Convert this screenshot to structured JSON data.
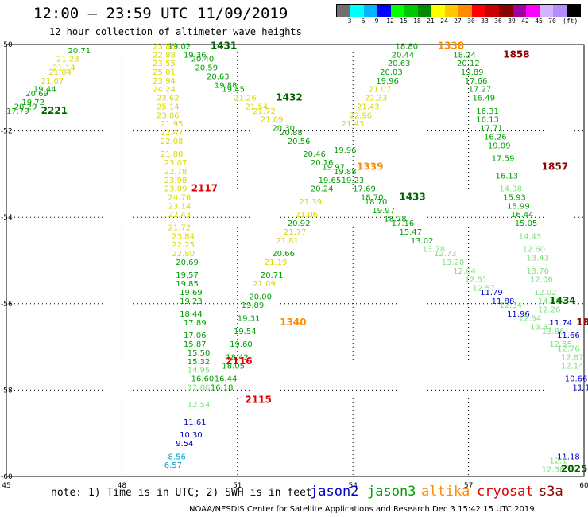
{
  "header": {
    "title": "12:00 – 23:59 UTC 11/09/2019",
    "subtitle": "12 hour collection of altimeter wave heights"
  },
  "legend": {
    "colors": [
      "#707070",
      "#00ffff",
      "#00b4ff",
      "#0000ff",
      "#00ff00",
      "#00c800",
      "#008c00",
      "#ffff00",
      "#ffc800",
      "#ff8c00",
      "#ff0000",
      "#c80000",
      "#8c0000",
      "#a000a0",
      "#ff00ff",
      "#d2b4ff",
      "#b48cff",
      "#000000"
    ],
    "labels": [
      "3",
      "6",
      "9",
      "12",
      "15",
      "18",
      "21",
      "24",
      "27",
      "30",
      "33",
      "36",
      "39",
      "42",
      "45",
      "70"
    ],
    "unit": "(ft)"
  },
  "axes": {
    "lon_ticks": [
      "45",
      "48",
      "51",
      "54",
      "57",
      "60"
    ],
    "lat_ticks": [
      "-50",
      "-52",
      "-54",
      "-56",
      "-58",
      "-60"
    ],
    "lon_range": [
      45,
      60
    ],
    "lat_range": [
      -50,
      -60
    ]
  },
  "color_map": {
    "a": "#d8d800",
    "g": "#00a000",
    "d": "#006400",
    "l": "#80e080",
    "b": "#0000cc",
    "c": "#00a0c8",
    "o": "#ff8c00",
    "r": "#e00000",
    "m": "#8c0000",
    "k": "#000000"
  },
  "tracks": [
    {
      "name": "2221",
      "color": "d",
      "lon": 45.9,
      "lat": -51.6
    },
    {
      "name": "1431",
      "color": "d",
      "lon": 50.3,
      "lat": -50.1
    },
    {
      "name": "1432",
      "color": "d",
      "lon": 52.0,
      "lat": -51.3
    },
    {
      "name": "1433",
      "color": "d",
      "lon": 55.2,
      "lat": -53.6
    },
    {
      "name": "1434",
      "color": "d",
      "lon": 59.1,
      "lat": -56.0
    },
    {
      "name": "2025",
      "color": "d",
      "lon": 59.4,
      "lat": -59.9
    },
    {
      "name": "1338",
      "color": "o",
      "lon": 56.2,
      "lat": -50.1
    },
    {
      "name": "1339",
      "color": "o",
      "lon": 54.1,
      "lat": -52.9
    },
    {
      "name": "1340",
      "color": "o",
      "lon": 52.1,
      "lat": -56.5
    },
    {
      "name": "1858",
      "color": "m",
      "lon": 57.9,
      "lat": -50.3
    },
    {
      "name": "1857",
      "color": "m",
      "lon": 58.9,
      "lat": -52.9
    },
    {
      "name": "185",
      "color": "m",
      "lon": 59.8,
      "lat": -56.5
    },
    {
      "name": "2117",
      "color": "r",
      "lon": 49.8,
      "lat": -53.4
    },
    {
      "name": "2116",
      "color": "r",
      "lon": 50.7,
      "lat": -57.4
    },
    {
      "name": "2115",
      "color": "r",
      "lon": 51.2,
      "lat": -58.3
    }
  ],
  "observations": [
    {
      "v": "20.71",
      "c": "g",
      "lon": 46.6,
      "lat": -50.2
    },
    {
      "v": "21.23",
      "c": "a",
      "lon": 46.3,
      "lat": -50.4
    },
    {
      "v": "21.14",
      "c": "a",
      "lon": 46.2,
      "lat": -50.6
    },
    {
      "v": "21.04",
      "c": "a",
      "lon": 46.1,
      "lat": -50.7
    },
    {
      "v": "21.07",
      "c": "a",
      "lon": 45.9,
      "lat": -50.9
    },
    {
      "v": "19.44",
      "c": "g",
      "lon": 45.7,
      "lat": -51.1
    },
    {
      "v": "20.69",
      "c": "g",
      "lon": 45.5,
      "lat": -51.2
    },
    {
      "v": "19.72",
      "c": "g",
      "lon": 45.4,
      "lat": -51.4
    },
    {
      "v": "20.29",
      "c": "g",
      "lon": 45.2,
      "lat": -51.5
    },
    {
      "v": "17.79",
      "c": "g",
      "lon": 45.0,
      "lat": -51.6
    },
    {
      "v": "19.02",
      "c": "g",
      "lon": 49.2,
      "lat": -50.1
    },
    {
      "v": "19.36",
      "c": "g",
      "lon": 49.6,
      "lat": -50.3
    },
    {
      "v": "20.40",
      "c": "g",
      "lon": 49.8,
      "lat": -50.4
    },
    {
      "v": "20.59",
      "c": "g",
      "lon": 49.9,
      "lat": -50.6
    },
    {
      "v": "20.63",
      "c": "g",
      "lon": 50.2,
      "lat": -50.8
    },
    {
      "v": "19.88",
      "c": "g",
      "lon": 50.4,
      "lat": -51.0
    },
    {
      "v": "19.45",
      "c": "g",
      "lon": 50.6,
      "lat": -51.1
    },
    {
      "v": "21.26",
      "c": "a",
      "lon": 50.9,
      "lat": -51.3
    },
    {
      "v": "21.54",
      "c": "a",
      "lon": 51.2,
      "lat": -51.5
    },
    {
      "v": "21.72",
      "c": "a",
      "lon": 51.4,
      "lat": -51.6
    },
    {
      "v": "21.69",
      "c": "a",
      "lon": 51.6,
      "lat": -51.8
    },
    {
      "v": "20.30",
      "c": "g",
      "lon": 51.9,
      "lat": -52.0
    },
    {
      "v": "20.88",
      "c": "g",
      "lon": 52.1,
      "lat": -52.1
    },
    {
      "v": "20.56",
      "c": "g",
      "lon": 52.3,
      "lat": -52.3
    },
    {
      "v": "20.46",
      "c": "g",
      "lon": 52.7,
      "lat": -52.6
    },
    {
      "v": "20.16",
      "c": "g",
      "lon": 52.9,
      "lat": -52.8
    },
    {
      "v": "19.97",
      "c": "g",
      "lon": 53.2,
      "lat": -52.9
    },
    {
      "v": "19.88",
      "c": "g",
      "lon": 53.5,
      "lat": -53.0
    },
    {
      "v": "19.23",
      "c": "g",
      "lon": 53.7,
      "lat": -53.2
    },
    {
      "v": "17.69",
      "c": "g",
      "lon": 54.0,
      "lat": -53.4
    },
    {
      "v": "18.70",
      "c": "g",
      "lon": 54.2,
      "lat": -53.6
    },
    {
      "v": "18.70",
      "c": "g",
      "lon": 54.3,
      "lat": -53.7
    },
    {
      "v": "19.97",
      "c": "g",
      "lon": 54.5,
      "lat": -53.9
    },
    {
      "v": "18.78",
      "c": "g",
      "lon": 54.8,
      "lat": -54.1
    },
    {
      "v": "17.16",
      "c": "g",
      "lon": 55.0,
      "lat": -54.2
    },
    {
      "v": "15.47",
      "c": "g",
      "lon": 55.2,
      "lat": -54.4
    },
    {
      "v": "13.02",
      "c": "g",
      "lon": 55.5,
      "lat": -54.6
    },
    {
      "v": "13.78",
      "c": "l",
      "lon": 55.8,
      "lat": -54.8
    },
    {
      "v": "12.73",
      "c": "l",
      "lon": 56.1,
      "lat": -54.9
    },
    {
      "v": "13.20",
      "c": "l",
      "lon": 56.3,
      "lat": -55.1
    },
    {
      "v": "12.64",
      "c": "l",
      "lon": 56.6,
      "lat": -55.3
    },
    {
      "v": "12.51",
      "c": "l",
      "lon": 56.9,
      "lat": -55.5
    },
    {
      "v": "12.57",
      "c": "l",
      "lon": 57.1,
      "lat": -55.7
    },
    {
      "v": "11.79",
      "c": "b",
      "lon": 57.3,
      "lat": -55.8
    },
    {
      "v": "11.88",
      "c": "b",
      "lon": 57.6,
      "lat": -56.0
    },
    {
      "v": "12.34",
      "c": "l",
      "lon": 57.8,
      "lat": -56.1
    },
    {
      "v": "11.96",
      "c": "b",
      "lon": 58.0,
      "lat": -56.3
    },
    {
      "v": "12.54",
      "c": "l",
      "lon": 58.3,
      "lat": -56.4
    },
    {
      "v": "13.37",
      "c": "l",
      "lon": 58.6,
      "lat": -56.6
    },
    {
      "v": "13.86",
      "c": "l",
      "lon": 58.9,
      "lat": -56.7
    },
    {
      "v": "11.74",
      "c": "b",
      "lon": 59.1,
      "lat": -56.5
    },
    {
      "v": "11.66",
      "c": "b",
      "lon": 59.3,
      "lat": -56.8
    },
    {
      "v": "12.55",
      "c": "l",
      "lon": 59.1,
      "lat": -57.0
    },
    {
      "v": "12.76",
      "c": "l",
      "lon": 59.3,
      "lat": -57.1
    },
    {
      "v": "12.87",
      "c": "l",
      "lon": 59.4,
      "lat": -57.3
    },
    {
      "v": "12.14",
      "c": "l",
      "lon": 59.4,
      "lat": -57.5
    },
    {
      "v": "10.66",
      "c": "b",
      "lon": 59.5,
      "lat": -57.8
    },
    {
      "v": "11.1",
      "c": "b",
      "lon": 59.7,
      "lat": -58.0
    },
    {
      "v": "11.18",
      "c": "b",
      "lon": 59.3,
      "lat": -59.6
    },
    {
      "v": "12.1",
      "c": "l",
      "lon": 59.1,
      "lat": -59.7
    },
    {
      "v": "12.38",
      "c": "l",
      "lon": 58.9,
      "lat": -59.9
    },
    {
      "v": "18.80",
      "c": "g",
      "lon": 55.1,
      "lat": -50.1
    },
    {
      "v": "20.44",
      "c": "g",
      "lon": 55.0,
      "lat": -50.3
    },
    {
      "v": "20.63",
      "c": "g",
      "lon": 54.9,
      "lat": -50.5
    },
    {
      "v": "20.03",
      "c": "g",
      "lon": 54.7,
      "lat": -50.7
    },
    {
      "v": "19.96",
      "c": "g",
      "lon": 54.6,
      "lat": -50.9
    },
    {
      "v": "21.07",
      "c": "a",
      "lon": 54.4,
      "lat": -51.1
    },
    {
      "v": "22.33",
      "c": "a",
      "lon": 54.3,
      "lat": -51.3
    },
    {
      "v": "21.43",
      "c": "a",
      "lon": 54.1,
      "lat": -51.5
    },
    {
      "v": "22.96",
      "c": "a",
      "lon": 53.9,
      "lat": -51.7
    },
    {
      "v": "21.43",
      "c": "a",
      "lon": 53.7,
      "lat": -51.9
    },
    {
      "v": "19.96",
      "c": "g",
      "lon": 53.5,
      "lat": -52.5
    },
    {
      "v": "19.65",
      "c": "g",
      "lon": 53.1,
      "lat": -53.2
    },
    {
      "v": "20.24",
      "c": "g",
      "lon": 52.9,
      "lat": -53.4
    },
    {
      "v": "21.39",
      "c": "a",
      "lon": 52.6,
      "lat": -53.7
    },
    {
      "v": "21.06",
      "c": "a",
      "lon": 52.5,
      "lat": -54.0
    },
    {
      "v": "20.92",
      "c": "g",
      "lon": 52.3,
      "lat": -54.2
    },
    {
      "v": "21.77",
      "c": "a",
      "lon": 52.2,
      "lat": -54.4
    },
    {
      "v": "21.81",
      "c": "a",
      "lon": 52.0,
      "lat": -54.6
    },
    {
      "v": "20.66",
      "c": "g",
      "lon": 51.9,
      "lat": -54.9
    },
    {
      "v": "21.19",
      "c": "a",
      "lon": 51.7,
      "lat": -55.1
    },
    {
      "v": "20.71",
      "c": "g",
      "lon": 51.6,
      "lat": -55.4
    },
    {
      "v": "21.09",
      "c": "a",
      "lon": 51.4,
      "lat": -55.6
    },
    {
      "v": "20.00",
      "c": "g",
      "lon": 51.3,
      "lat": -55.9
    },
    {
      "v": "19.89",
      "c": "g",
      "lon": 51.1,
      "lat": -56.1
    },
    {
      "v": "19.31",
      "c": "g",
      "lon": 51.0,
      "lat": -56.4
    },
    {
      "v": "19.54",
      "c": "g",
      "lon": 50.9,
      "lat": -56.7
    },
    {
      "v": "19.60",
      "c": "g",
      "lon": 50.8,
      "lat": -57.0
    },
    {
      "v": "18.42",
      "c": "g",
      "lon": 50.7,
      "lat": -57.3
    },
    {
      "v": "18.05",
      "c": "g",
      "lon": 50.6,
      "lat": -57.5
    },
    {
      "v": "16.44",
      "c": "g",
      "lon": 50.4,
      "lat": -57.8
    },
    {
      "v": "16.18",
      "c": "g",
      "lon": 50.3,
      "lat": -58.0
    },
    {
      "v": "18.24",
      "c": "g",
      "lon": 56.6,
      "lat": -50.3
    },
    {
      "v": "20.12",
      "c": "g",
      "lon": 56.7,
      "lat": -50.5
    },
    {
      "v": "19.89",
      "c": "g",
      "lon": 56.8,
      "lat": -50.7
    },
    {
      "v": "17.66",
      "c": "g",
      "lon": 56.9,
      "lat": -50.9
    },
    {
      "v": "17.27",
      "c": "g",
      "lon": 57.0,
      "lat": -51.1
    },
    {
      "v": "16.49",
      "c": "g",
      "lon": 57.1,
      "lat": -51.3
    },
    {
      "v": "16.31",
      "c": "g",
      "lon": 57.2,
      "lat": -51.6
    },
    {
      "v": "16.13",
      "c": "g",
      "lon": 57.2,
      "lat": -51.8
    },
    {
      "v": "17.71",
      "c": "g",
      "lon": 57.3,
      "lat": -52.0
    },
    {
      "v": "16.26",
      "c": "g",
      "lon": 57.4,
      "lat": -52.2
    },
    {
      "v": "19.09",
      "c": "g",
      "lon": 57.5,
      "lat": -52.4
    },
    {
      "v": "17.59",
      "c": "g",
      "lon": 57.6,
      "lat": -52.7
    },
    {
      "v": "16.13",
      "c": "g",
      "lon": 57.7,
      "lat": -53.1
    },
    {
      "v": "14.98",
      "c": "l",
      "lon": 57.8,
      "lat": -53.4
    },
    {
      "v": "15.93",
      "c": "g",
      "lon": 57.9,
      "lat": -53.6
    },
    {
      "v": "15.99",
      "c": "g",
      "lon": 58.0,
      "lat": -53.8
    },
    {
      "v": "16.44",
      "c": "g",
      "lon": 58.1,
      "lat": -54.0
    },
    {
      "v": "15.05",
      "c": "g",
      "lon": 58.2,
      "lat": -54.2
    },
    {
      "v": "14.43",
      "c": "l",
      "lon": 58.3,
      "lat": -54.5
    },
    {
      "v": "12.60",
      "c": "l",
      "lon": 58.4,
      "lat": -54.8
    },
    {
      "v": "13.43",
      "c": "l",
      "lon": 58.5,
      "lat": -55.0
    },
    {
      "v": "13.76",
      "c": "l",
      "lon": 58.5,
      "lat": -55.3
    },
    {
      "v": "12.06",
      "c": "l",
      "lon": 58.6,
      "lat": -55.5
    },
    {
      "v": "12.02",
      "c": "l",
      "lon": 58.7,
      "lat": -55.8
    },
    {
      "v": "14.68",
      "c": "l",
      "lon": 58.8,
      "lat": -56.0
    },
    {
      "v": "12.26",
      "c": "l",
      "lon": 58.8,
      "lat": -56.2
    },
    {
      "v": "23.88",
      "c": "a",
      "lon": 48.8,
      "lat": -50.1
    },
    {
      "v": "22.88",
      "c": "a",
      "lon": 48.8,
      "lat": -50.3
    },
    {
      "v": "23.55",
      "c": "a",
      "lon": 48.8,
      "lat": -50.5
    },
    {
      "v": "25.01",
      "c": "a",
      "lon": 48.8,
      "lat": -50.7
    },
    {
      "v": "23.94",
      "c": "a",
      "lon": 48.8,
      "lat": -50.9
    },
    {
      "v": "24.24",
      "c": "a",
      "lon": 48.8,
      "lat": -51.1
    },
    {
      "v": "23.62",
      "c": "a",
      "lon": 48.9,
      "lat": -51.3
    },
    {
      "v": "25.14",
      "c": "a",
      "lon": 48.9,
      "lat": -51.5
    },
    {
      "v": "23.06",
      "c": "a",
      "lon": 48.9,
      "lat": -51.7
    },
    {
      "v": "21.95",
      "c": "a",
      "lon": 49.0,
      "lat": -51.9
    },
    {
      "v": "22.47",
      "c": "a",
      "lon": 49.0,
      "lat": -52.1
    },
    {
      "v": "22.08",
      "c": "a",
      "lon": 49.0,
      "lat": -52.3
    },
    {
      "v": "21.80",
      "c": "a",
      "lon": 49.0,
      "lat": -52.6
    },
    {
      "v": "23.07",
      "c": "a",
      "lon": 49.1,
      "lat": -52.8
    },
    {
      "v": "22.78",
      "c": "a",
      "lon": 49.1,
      "lat": -53.0
    },
    {
      "v": "23.98",
      "c": "a",
      "lon": 49.1,
      "lat": -53.2
    },
    {
      "v": "23.09",
      "c": "a",
      "lon": 49.1,
      "lat": -53.4
    },
    {
      "v": "24.76",
      "c": "a",
      "lon": 49.2,
      "lat": -53.6
    },
    {
      "v": "23.14",
      "c": "a",
      "lon": 49.2,
      "lat": -53.8
    },
    {
      "v": "22.43",
      "c": "a",
      "lon": 49.2,
      "lat": -54.0
    },
    {
      "v": "21.72",
      "c": "a",
      "lon": 49.2,
      "lat": -54.3
    },
    {
      "v": "23.84",
      "c": "a",
      "lon": 49.3,
      "lat": -54.5
    },
    {
      "v": "22.25",
      "c": "a",
      "lon": 49.3,
      "lat": -54.7
    },
    {
      "v": "22.80",
      "c": "a",
      "lon": 49.3,
      "lat": -54.9
    },
    {
      "v": "20.69",
      "c": "g",
      "lon": 49.4,
      "lat": -55.1
    },
    {
      "v": "19.57",
      "c": "g",
      "lon": 49.4,
      "lat": -55.4
    },
    {
      "v": "19.85",
      "c": "g",
      "lon": 49.4,
      "lat": -55.6
    },
    {
      "v": "19.69",
      "c": "g",
      "lon": 49.5,
      "lat": -55.8
    },
    {
      "v": "19.23",
      "c": "g",
      "lon": 49.5,
      "lat": -56.0
    },
    {
      "v": "18.44",
      "c": "g",
      "lon": 49.5,
      "lat": -56.3
    },
    {
      "v": "17.89",
      "c": "g",
      "lon": 49.6,
      "lat": -56.5
    },
    {
      "v": "17.06",
      "c": "g",
      "lon": 49.6,
      "lat": -56.8
    },
    {
      "v": "15.87",
      "c": "g",
      "lon": 49.6,
      "lat": -57.0
    },
    {
      "v": "15.50",
      "c": "g",
      "lon": 49.7,
      "lat": -57.2
    },
    {
      "v": "15.32",
      "c": "g",
      "lon": 49.7,
      "lat": -57.4
    },
    {
      "v": "14.95",
      "c": "l",
      "lon": 49.7,
      "lat": -57.6
    },
    {
      "v": "16.60",
      "c": "g",
      "lon": 49.8,
      "lat": -57.8
    },
    {
      "v": "12.86",
      "c": "l",
      "lon": 49.7,
      "lat": -58.0
    },
    {
      "v": "12.54",
      "c": "l",
      "lon": 49.7,
      "lat": -58.4
    },
    {
      "v": "11.61",
      "c": "b",
      "lon": 49.6,
      "lat": -58.8
    },
    {
      "v": "10.30",
      "c": "b",
      "lon": 49.5,
      "lat": -59.1
    },
    {
      "v": "9.54",
      "c": "b",
      "lon": 49.4,
      "lat": -59.3
    },
    {
      "v": "8.56",
      "c": "c",
      "lon": 49.2,
      "lat": -59.6
    },
    {
      "v": "6.57",
      "c": "c",
      "lon": 49.1,
      "lat": -59.8
    }
  ],
  "footer": {
    "note": "note: 1) Time is in UTC; 2) SWH is in feet",
    "satellites": [
      {
        "name": "jason2",
        "color": "#0000cc"
      },
      {
        "name": "jason3",
        "color": "#00a000"
      },
      {
        "name": "altika",
        "color": "#ff8c00"
      },
      {
        "name": "cryosat",
        "color": "#e00000"
      },
      {
        "name": "s3a",
        "color": "#8c0000"
      }
    ],
    "credit": "NOAA/NESDIS Center for Satellite Applications and Research    Dec  3 15:42:15 UTC 2019"
  }
}
